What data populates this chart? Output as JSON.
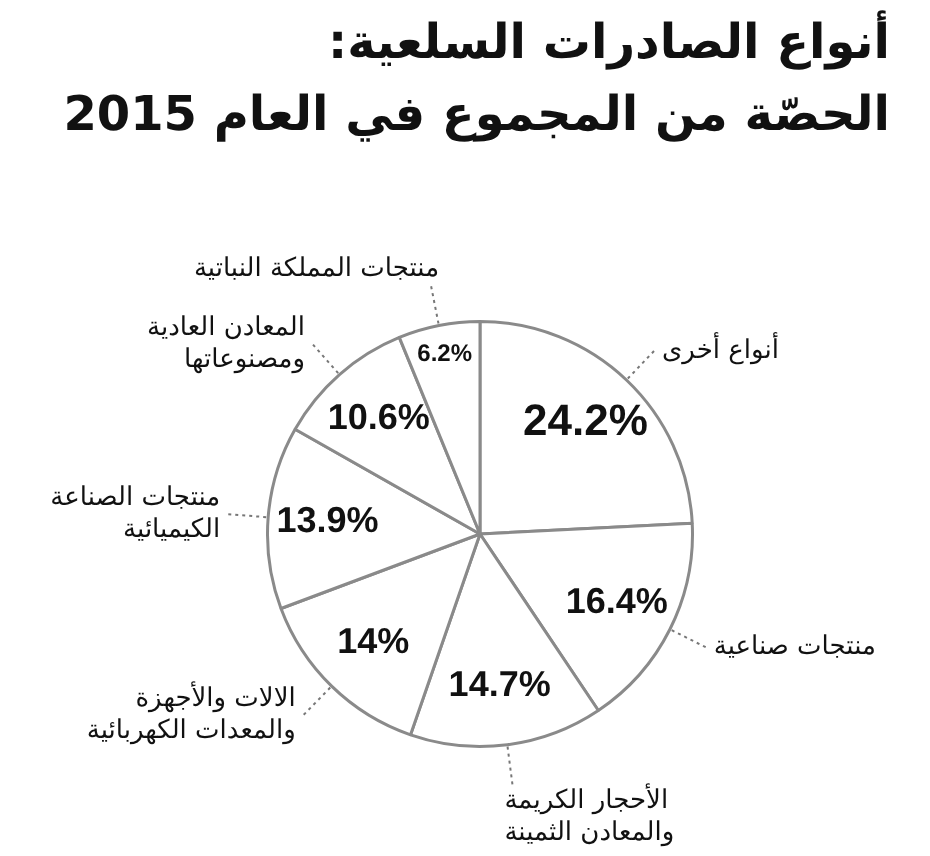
{
  "chart_data": {
    "type": "pie",
    "title": "أنواع الصادرات السلعية:",
    "subtitle": "الحصّة من المجموع في العام 2015",
    "categories": [
      "أنواع أخرى",
      "منتجات صناعية",
      "الأحجار الكريمة والمعادن الثمينة",
      "الالات والأجهزة والمعدات الكهربائية",
      "منتجات الصناعة الكيميائية",
      "المعادن العادية ومصنوعاتها",
      "منتجات المملكة النباتية"
    ],
    "values": [
      24.2,
      16.4,
      14.7,
      14,
      13.9,
      10.6,
      6.2
    ],
    "colors": [
      "#ffffff",
      "#ffffff",
      "#ffffff",
      "#ffffff",
      "#ffffff",
      "#ffffff",
      "#ffffff"
    ],
    "value_labels": [
      "24.2%",
      "16.4%",
      "14.7%",
      "14%",
      "13.9%",
      "10.6%",
      "6.2%"
    ]
  }
}
